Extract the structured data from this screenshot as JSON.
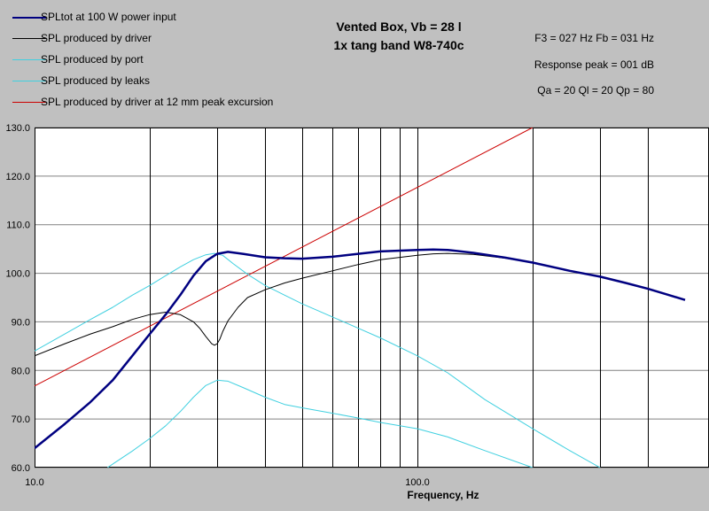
{
  "chart_data": {
    "type": "line",
    "title": "Vented Box, Vb = 28 l",
    "subtitle": "1x tang band W8-740c",
    "parameters": [
      "F3 = 027 Hz  Fb = 031 Hz",
      "Response peak = 001 dB",
      "Qa = 20  Ql = 20  Qp = 80"
    ],
    "xlabel": "Frequency, Hz",
    "ylabel": "",
    "x_scale": "log",
    "xlim": [
      10,
      500
    ],
    "ylim": [
      60,
      130
    ],
    "x_ticks": [
      10,
      100
    ],
    "x_tick_labels": [
      "10.0",
      "100.0"
    ],
    "y_ticks": [
      60,
      70,
      80,
      90,
      100,
      110,
      120,
      130
    ],
    "y_tick_labels": [
      "60.0",
      "70.0",
      "80.0",
      "90.0",
      "100.0",
      "110.0",
      "120.0",
      "130.0"
    ],
    "x_gridlines": [
      10,
      20,
      30,
      40,
      50,
      60,
      70,
      80,
      90,
      100,
      200,
      300,
      400
    ],
    "grid": true,
    "legend_position": "top-left",
    "series": [
      {
        "name": "SPLtot at 100 W power input",
        "color": "#000080",
        "width": 2.5,
        "points": [
          [
            10,
            64
          ],
          [
            12,
            69
          ],
          [
            14,
            73.5
          ],
          [
            16,
            78
          ],
          [
            18,
            83
          ],
          [
            20,
            87.5
          ],
          [
            22,
            91.5
          ],
          [
            24,
            95.5
          ],
          [
            26,
            99.5
          ],
          [
            28,
            102.5
          ],
          [
            30,
            104
          ],
          [
            32,
            104.4
          ],
          [
            35,
            104
          ],
          [
            40,
            103.3
          ],
          [
            45,
            103.1
          ],
          [
            50,
            103
          ],
          [
            60,
            103.4
          ],
          [
            70,
            104
          ],
          [
            80,
            104.5
          ],
          [
            100,
            104.8
          ],
          [
            110,
            104.9
          ],
          [
            120,
            104.8
          ],
          [
            140,
            104.2
          ],
          [
            170,
            103.2
          ],
          [
            200,
            102.2
          ],
          [
            250,
            100.5
          ],
          [
            300,
            99.3
          ],
          [
            350,
            98
          ],
          [
            400,
            96.8
          ],
          [
            450,
            95.6
          ],
          [
            500,
            94.5
          ]
        ]
      },
      {
        "name": "SPL produced by driver",
        "color": "#000000",
        "width": 1,
        "points": [
          [
            10,
            83
          ],
          [
            12,
            85.5
          ],
          [
            14,
            87.5
          ],
          [
            16,
            89
          ],
          [
            18,
            90.5
          ],
          [
            20,
            91.5
          ],
          [
            22,
            92
          ],
          [
            24,
            91.5
          ],
          [
            26,
            90
          ],
          [
            27,
            88.7
          ],
          [
            28,
            87
          ],
          [
            29,
            85.5
          ],
          [
            29.5,
            85.2
          ],
          [
            30,
            85.5
          ],
          [
            30.5,
            86.5
          ],
          [
            31,
            88
          ],
          [
            32,
            90.2
          ],
          [
            34,
            93
          ],
          [
            36,
            95
          ],
          [
            40,
            96.6
          ],
          [
            45,
            98
          ],
          [
            50,
            99
          ],
          [
            60,
            100.5
          ],
          [
            70,
            101.8
          ],
          [
            80,
            102.8
          ],
          [
            100,
            103.7
          ],
          [
            110,
            104
          ],
          [
            120,
            104.1
          ],
          [
            140,
            103.9
          ],
          [
            170,
            103.1
          ],
          [
            200,
            102.2
          ],
          [
            250,
            100.5
          ],
          [
            300,
            99.3
          ],
          [
            350,
            98
          ],
          [
            400,
            96.8
          ],
          [
            450,
            95.6
          ],
          [
            500,
            94.5
          ]
        ]
      },
      {
        "name": "SPL produced by port",
        "color": "#40d0e0",
        "width": 1,
        "points": [
          [
            10,
            84
          ],
          [
            12,
            87.5
          ],
          [
            14,
            90.5
          ],
          [
            16,
            93
          ],
          [
            18,
            95.5
          ],
          [
            20,
            97.5
          ],
          [
            22,
            99.5
          ],
          [
            24,
            101.3
          ],
          [
            26,
            102.8
          ],
          [
            28,
            103.8
          ],
          [
            29.5,
            104.1
          ],
          [
            31,
            103.7
          ],
          [
            33,
            102
          ],
          [
            36,
            99.8
          ],
          [
            40,
            97.5
          ],
          [
            45,
            95.5
          ],
          [
            50,
            93.7
          ],
          [
            60,
            91
          ],
          [
            70,
            88.7
          ],
          [
            80,
            86.7
          ],
          [
            100,
            83
          ],
          [
            120,
            79.5
          ],
          [
            150,
            74
          ],
          [
            200,
            68
          ],
          [
            250,
            63.5
          ],
          [
            300,
            60
          ]
        ]
      },
      {
        "name": "SPL produced by leaks",
        "color": "#40d0e0",
        "width": 1,
        "points": [
          [
            15.5,
            60
          ],
          [
            18,
            63.4
          ],
          [
            20,
            66
          ],
          [
            22,
            68.6
          ],
          [
            24,
            71.5
          ],
          [
            26,
            74.5
          ],
          [
            28,
            76.9
          ],
          [
            30,
            78
          ],
          [
            32,
            77.8
          ],
          [
            35,
            76.5
          ],
          [
            40,
            74.5
          ],
          [
            45,
            73
          ],
          [
            50,
            72.3
          ],
          [
            60,
            71.2
          ],
          [
            70,
            70.2
          ],
          [
            80,
            69.3
          ],
          [
            100,
            68
          ],
          [
            120,
            66.3
          ],
          [
            150,
            63.5
          ],
          [
            200,
            60
          ]
        ]
      },
      {
        "name": "SPL produced by driver at 12 mm peak excursion",
        "color": "#cc0000",
        "width": 1,
        "points": [
          [
            10,
            76.8
          ],
          [
            200,
            130
          ]
        ]
      }
    ]
  }
}
